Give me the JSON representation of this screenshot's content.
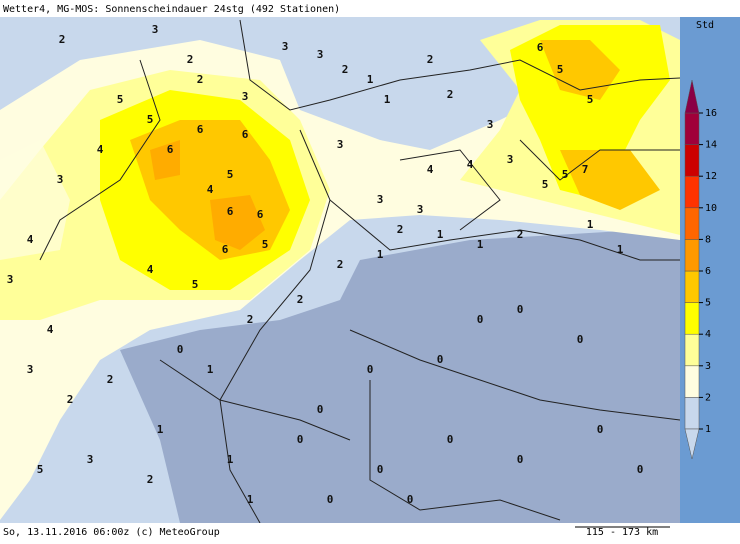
{
  "header": {
    "title": "Wetter4, MG-MOS: Sonnenscheindauer 24stg (492 Stationen)"
  },
  "footer": {
    "left": "So, 13.11.2016 06:00z (c) MeteoGroup",
    "scale": "115 - 173 km"
  },
  "legend": {
    "unit": "Std",
    "ticks": [
      1,
      2,
      3,
      4,
      5,
      6,
      8,
      10,
      12,
      14,
      16
    ],
    "colors": [
      "#c8d8ec",
      "#fffde0",
      "#ffff99",
      "#ffff00",
      "#ffc800",
      "#ff9900",
      "#ff6600",
      "#ff3300",
      "#cc0000",
      "#a0003a"
    ],
    "below_color": "#c8d8ec",
    "above_color": "#8a0045"
  },
  "stations": [
    2,
    3,
    2,
    2,
    3,
    3,
    3,
    2,
    1,
    1,
    2,
    2,
    3,
    6,
    5,
    5,
    7,
    5,
    5,
    3,
    4,
    5,
    5,
    6,
    6,
    6,
    5,
    4,
    6,
    6,
    5,
    6,
    5,
    4,
    4,
    3,
    4,
    3,
    4,
    3,
    2,
    2,
    0,
    1,
    2,
    2,
    2,
    1,
    2,
    1,
    1,
    2,
    1,
    1,
    0,
    0,
    0,
    0,
    0,
    0,
    0,
    0,
    0,
    0,
    0,
    1,
    2,
    5,
    3,
    1,
    1,
    0,
    0,
    0,
    3,
    3,
    4,
    3
  ]
}
